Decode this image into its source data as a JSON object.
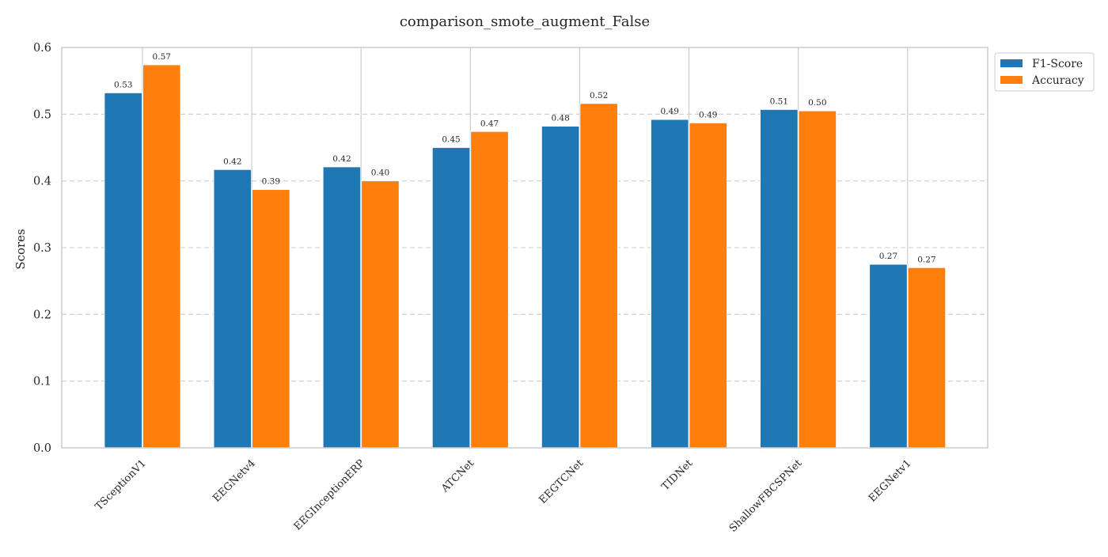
{
  "chart_data": {
    "type": "bar",
    "title": "comparison_smote_augment_False",
    "xlabel": "",
    "ylabel": "Scores",
    "ylim": [
      0,
      0.6
    ],
    "yticks": [
      "0.0",
      "0.1",
      "0.2",
      "0.3",
      "0.4",
      "0.5",
      "0.6"
    ],
    "grid": true,
    "legend_position": "outside-top-right",
    "categories": [
      "TSceptionV1",
      "EEGNetv4",
      "EEGInceptionERP",
      "ATCNet",
      "EEGTCNet",
      "TIDNet",
      "ShallowFBCSPNet",
      "EEGNetv1"
    ],
    "series": [
      {
        "name": "F1-Score",
        "color": "#1f77b4",
        "values": [
          0.532,
          0.417,
          0.421,
          0.45,
          0.482,
          0.492,
          0.507,
          0.275
        ],
        "labels": [
          "0.53",
          "0.42",
          "0.42",
          "0.45",
          "0.48",
          "0.49",
          "0.51",
          "0.27"
        ]
      },
      {
        "name": "Accuracy",
        "color": "#ff7f0e",
        "values": [
          0.574,
          0.387,
          0.4,
          0.474,
          0.516,
          0.487,
          0.505,
          0.27
        ],
        "labels": [
          "0.57",
          "0.39",
          "0.40",
          "0.47",
          "0.52",
          "0.49",
          "0.50",
          "0.27"
        ]
      }
    ]
  }
}
